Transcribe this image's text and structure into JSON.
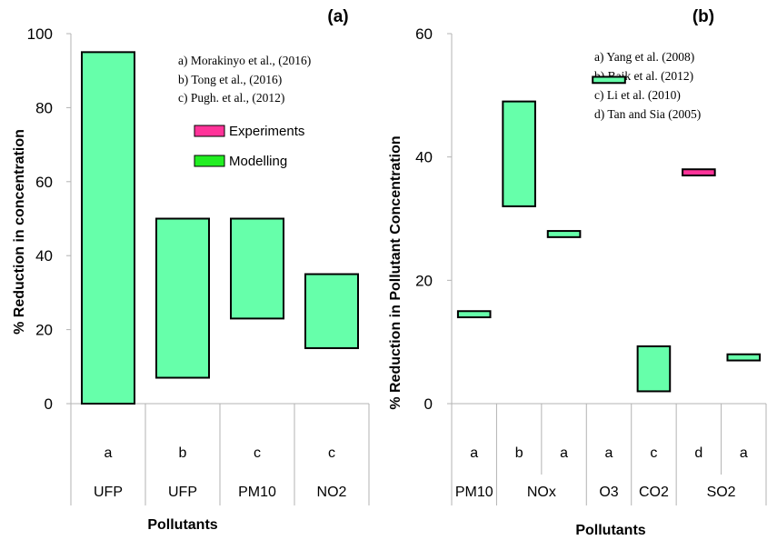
{
  "colors": {
    "modelling": "#66ffaa",
    "experiments": "#ff3399",
    "legend_modelling": "#22ee22",
    "stroke": "#000000",
    "axis": "#b3b3b3"
  },
  "chart_data": [
    {
      "type": "bar",
      "panel_label": "(a)",
      "ylabel": "% Reduction in concentration",
      "xlabel": "Pollutants",
      "ylim": [
        0,
        100
      ],
      "yticks": [
        0,
        20,
        40,
        60,
        80,
        100
      ],
      "references": [
        "a) Morakinyo et al., (2016)",
        "b) Tong et al., (2016)",
        "c) Pugh. et al., (2012)"
      ],
      "legend": [
        {
          "label": "Experiments",
          "color": "#ff3399"
        },
        {
          "label": "Modelling",
          "color": "#22ee22"
        }
      ],
      "legend_position": "top-right",
      "categories": [
        {
          "ref": "a",
          "pollutant": "UFP"
        },
        {
          "ref": "b",
          "pollutant": "UFP"
        },
        {
          "ref": "c",
          "pollutant": "PM10"
        },
        {
          "ref": "c",
          "pollutant": "NO2"
        }
      ],
      "pollutant_groups": [
        {
          "label": "UFP",
          "span": 1
        },
        {
          "label": "UFP",
          "span": 1
        },
        {
          "label": "PM10",
          "span": 1
        },
        {
          "label": "NO2",
          "span": 1
        }
      ],
      "ranges": [
        {
          "low": 0,
          "high": 95,
          "type": "Modelling"
        },
        {
          "low": 7,
          "high": 50,
          "type": "Modelling"
        },
        {
          "low": 23,
          "high": 50,
          "type": "Modelling"
        },
        {
          "low": 15,
          "high": 35,
          "type": "Modelling"
        }
      ]
    },
    {
      "type": "bar",
      "panel_label": "(b)",
      "ylabel": "% Reduction in Pollutant Concentration",
      "xlabel": "Pollutants",
      "ylim": [
        0,
        60
      ],
      "yticks": [
        0,
        20,
        40,
        60
      ],
      "references": [
        "a) Yang et al. (2008)",
        "b) Baik et al. (2012)",
        "c) Li et al. (2010)",
        "d) Tan and Sia (2005)"
      ],
      "categories": [
        {
          "ref": "a",
          "pollutant": "PM10"
        },
        {
          "ref": "b",
          "pollutant": "NOx"
        },
        {
          "ref": "a",
          "pollutant": "NOx"
        },
        {
          "ref": "a",
          "pollutant": "O3"
        },
        {
          "ref": "c",
          "pollutant": "CO2"
        },
        {
          "ref": "d",
          "pollutant": "SO2"
        },
        {
          "ref": "a",
          "pollutant": "SO2"
        }
      ],
      "pollutant_groups": [
        {
          "label": "PM10",
          "span": 1
        },
        {
          "label": "NOx",
          "span": 2
        },
        {
          "label": "O3",
          "span": 1
        },
        {
          "label": "CO2",
          "span": 1
        },
        {
          "label": "SO2",
          "span": 2
        }
      ],
      "ranges": [
        {
          "low": 14,
          "high": 15,
          "type": "Modelling"
        },
        {
          "low": 32,
          "high": 49,
          "type": "Modelling"
        },
        {
          "low": 27,
          "high": 28,
          "type": "Modelling"
        },
        {
          "low": 52,
          "high": 53,
          "type": "Modelling"
        },
        {
          "low": 2,
          "high": 9.3,
          "type": "Modelling"
        },
        {
          "low": 37,
          "high": 38,
          "type": "Experiments"
        },
        {
          "low": 7,
          "high": 8,
          "type": "Modelling"
        }
      ]
    }
  ]
}
